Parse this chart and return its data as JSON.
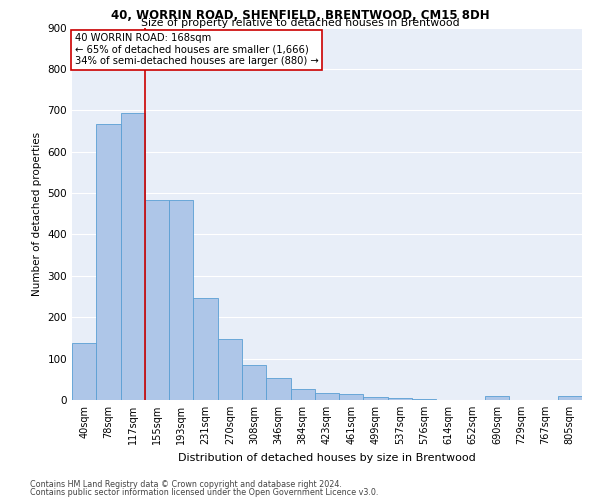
{
  "title1": "40, WORRIN ROAD, SHENFIELD, BRENTWOOD, CM15 8DH",
  "title2": "Size of property relative to detached houses in Brentwood",
  "xlabel": "Distribution of detached houses by size in Brentwood",
  "ylabel": "Number of detached properties",
  "bar_labels": [
    "40sqm",
    "78sqm",
    "117sqm",
    "155sqm",
    "193sqm",
    "231sqm",
    "270sqm",
    "308sqm",
    "346sqm",
    "384sqm",
    "423sqm",
    "461sqm",
    "499sqm",
    "537sqm",
    "576sqm",
    "614sqm",
    "652sqm",
    "690sqm",
    "729sqm",
    "767sqm",
    "805sqm"
  ],
  "bar_values": [
    138,
    667,
    693,
    484,
    484,
    247,
    148,
    85,
    52,
    27,
    18,
    14,
    8,
    4,
    3,
    0,
    0,
    10,
    0,
    0,
    9
  ],
  "bar_color": "#aec6e8",
  "bar_edge_color": "#5a9fd4",
  "annotation_label": "40 WORRIN ROAD: 168sqm",
  "annotation_line1": "← 65% of detached houses are smaller (1,666)",
  "annotation_line2": "34% of semi-detached houses are larger (880) →",
  "vline_color": "#cc0000",
  "vline_x": 2.5,
  "ylim": [
    0,
    900
  ],
  "yticks": [
    0,
    100,
    200,
    300,
    400,
    500,
    600,
    700,
    800,
    900
  ],
  "background_color": "#e8eef8",
  "grid_color": "#ffffff",
  "footer1": "Contains HM Land Registry data © Crown copyright and database right 2024.",
  "footer2": "Contains public sector information licensed under the Open Government Licence v3.0."
}
